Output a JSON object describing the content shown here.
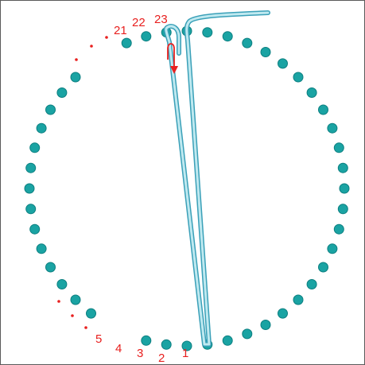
{
  "diagram": {
    "peg_color": "#1aa3a3",
    "peg_stroke": "#0c7f80",
    "wire_color": "#a8dfe8",
    "wire_outline": "#3aa0b8",
    "accent_color": "#e8201f",
    "peg_count": 48,
    "pin_numbers": {
      "n1": "1",
      "n2": "2",
      "n3": "3",
      "n4": "4",
      "n5": "5",
      "n21": "21",
      "n22": "22",
      "n23": "23"
    }
  }
}
